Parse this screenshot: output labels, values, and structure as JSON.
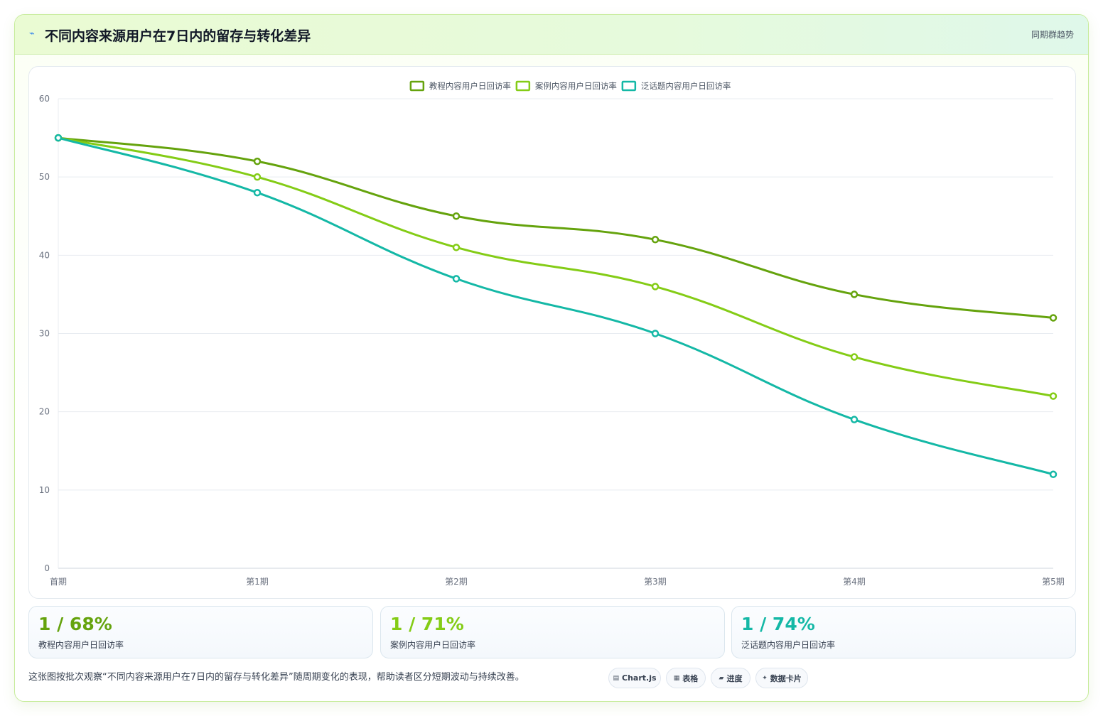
{
  "header": {
    "icon": "lightning-icon",
    "title": "不同内容来源用户在7日内的留存与转化差异",
    "tag": "同期群趋势"
  },
  "chart_data": {
    "type": "line",
    "categories": [
      "首期",
      "第1期",
      "第2期",
      "第3期",
      "第4期",
      "第5期"
    ],
    "series": [
      {
        "name": "教程内容用户日回访率",
        "color": "#65a30d",
        "values": [
          55,
          52,
          45,
          42,
          35,
          32
        ]
      },
      {
        "name": "案例内容用户日回访率",
        "color": "#84cc16",
        "values": [
          55,
          50,
          41,
          36,
          27,
          22
        ]
      },
      {
        "name": "泛话题内容用户日回访率",
        "color": "#14b8a6",
        "values": [
          55,
          48,
          37,
          30,
          19,
          12
        ]
      }
    ],
    "ylim": [
      0,
      60
    ],
    "yticks": [
      0,
      10,
      20,
      30,
      40,
      50,
      60
    ],
    "grid": true,
    "legend": "top-center"
  },
  "stats": [
    {
      "value": "1 / 68%",
      "label": "教程内容用户日回访率",
      "color": "#65a30d"
    },
    {
      "value": "1 / 71%",
      "label": "案例内容用户日回访率",
      "color": "#84cc16"
    },
    {
      "value": "1 / 74%",
      "label": "泛话题内容用户日回访率",
      "color": "#14b8a6"
    }
  ],
  "footnote": "这张图按批次观察“不同内容来源用户在7日内的留存与转化差异”随周期变化的表现，帮助读者区分短期波动与持续改善。",
  "chips": [
    {
      "icon": "chart-icon",
      "glyph": "▤",
      "label": "Chart.js"
    },
    {
      "icon": "table-icon",
      "glyph": "▦",
      "label": "表格"
    },
    {
      "icon": "progress-icon",
      "glyph": "▰",
      "label": "进度"
    },
    {
      "icon": "sparkle-icon",
      "glyph": "✦",
      "label": "数据卡片"
    }
  ]
}
